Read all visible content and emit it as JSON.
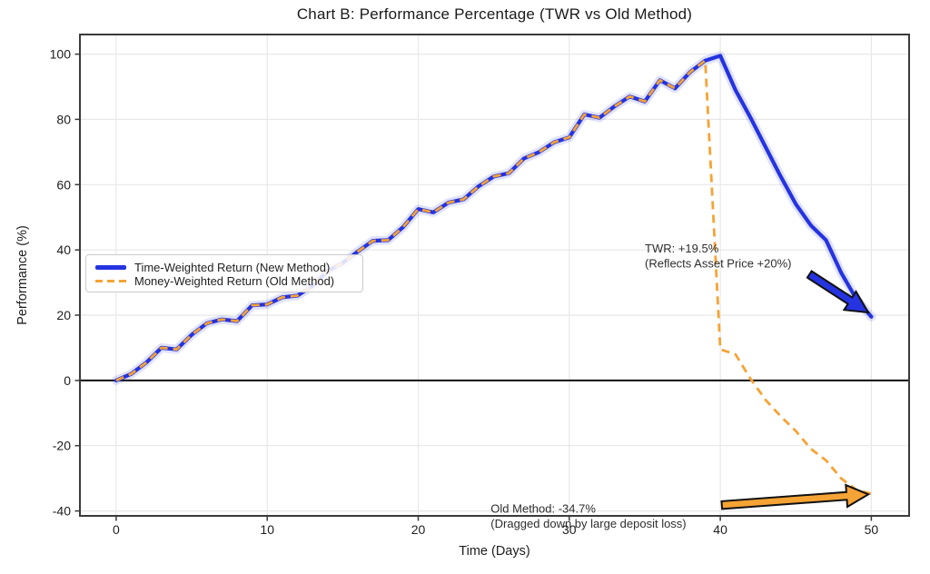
{
  "title": "Chart B: Performance Percentage (TWR vs Old Method)",
  "colors": {
    "twr": "#2533e0",
    "mwr": "#f6a335",
    "grid": "#e8e8e8",
    "spine": "#3a3a3a",
    "zero_line": "#111111",
    "tick_text": "#1d1d1d",
    "annotation_text": "#2e2e2e"
  },
  "legend": {
    "items": [
      {
        "label": "Time-Weighted Return (New Method)",
        "line_style": "solid"
      },
      {
        "label": "Money-Weighted Return (Old Method)",
        "line_style": "dashed"
      }
    ]
  },
  "chart_data": {
    "type": "line",
    "title": "Chart B: Performance Percentage (TWR vs Old Method)",
    "xlabel": "Time (Days)",
    "ylabel": "Performance (%)",
    "xlim": [
      -2.4,
      52.5
    ],
    "ylim": [
      -41.5,
      106
    ],
    "x_ticks": [
      0,
      10,
      20,
      30,
      40,
      50
    ],
    "y_ticks": [
      -40,
      -20,
      0,
      20,
      40,
      60,
      80,
      100
    ],
    "grid": true,
    "zero_line": true,
    "legend_position": "center-left",
    "series": [
      {
        "name": "Time-Weighted Return (New Method)",
        "style": "solid",
        "color": "#2533e0",
        "x": [
          0,
          1,
          2,
          3,
          4,
          5,
          6,
          7,
          8,
          9,
          10,
          11,
          12,
          13,
          14,
          15,
          16,
          17,
          18,
          19,
          20,
          21,
          22,
          23,
          24,
          25,
          26,
          27,
          28,
          29,
          30,
          31,
          32,
          33,
          34,
          35,
          36,
          37,
          38,
          39,
          40,
          41,
          42,
          43,
          44,
          45,
          46,
          47,
          48,
          49,
          50
        ],
        "y": [
          0,
          2,
          5.5,
          10,
          9.5,
          14,
          17.5,
          18.7,
          18.2,
          23,
          23.3,
          25.5,
          26,
          29,
          33.5,
          36,
          39.5,
          42.8,
          43,
          47,
          52.5,
          51.5,
          54.5,
          55.5,
          59.5,
          62.5,
          63.5,
          68,
          70,
          73,
          74.5,
          81.5,
          80.5,
          84,
          87,
          85.5,
          92,
          89.5,
          94.5,
          98,
          99.5,
          89,
          80.5,
          71.5,
          62.5,
          54,
          47.5,
          43,
          33,
          25,
          19.5
        ]
      },
      {
        "name": "Money-Weighted Return (Old Method)",
        "style": "dashed",
        "color": "#f6a335",
        "x": [
          0,
          1,
          2,
          3,
          4,
          5,
          6,
          7,
          8,
          9,
          10,
          11,
          12,
          13,
          14,
          15,
          16,
          17,
          18,
          19,
          20,
          21,
          22,
          23,
          24,
          25,
          26,
          27,
          28,
          29,
          30,
          31,
          32,
          33,
          34,
          35,
          36,
          37,
          38,
          39,
          40,
          41,
          42,
          43,
          44,
          45,
          46,
          47,
          48,
          49,
          50
        ],
        "y": [
          0,
          2,
          5.5,
          10,
          9.5,
          14,
          17.5,
          18.7,
          18.2,
          23,
          23.3,
          25.5,
          26,
          29,
          33.5,
          36,
          39.5,
          42.8,
          43,
          47,
          52.5,
          51.5,
          54.5,
          55.5,
          59.5,
          62.5,
          63.5,
          68,
          70,
          73,
          74.5,
          81.5,
          80.5,
          84,
          87,
          85.5,
          92,
          89.5,
          94.5,
          98,
          9.5,
          8,
          0.5,
          -6,
          -11,
          -15.5,
          -21,
          -24.5,
          -30,
          -33.5,
          -34.7
        ]
      }
    ],
    "annotations": [
      {
        "id": "twr",
        "lines": [
          "TWR: +19.5%",
          "(Reflects Asset Price +20%)"
        ],
        "text_x": 35.0,
        "text_y": 42.6,
        "arrow_from": [
          45.9,
          32.5
        ],
        "arrow_to": [
          49.8,
          20.8
        ],
        "arrow_color": "#2533e0"
      },
      {
        "id": "old-method",
        "lines": [
          "Old Method: -34.7%",
          "(Dragged down by large deposit loss)"
        ],
        "text_x": 24.8,
        "text_y": -37.2,
        "arrow_from": [
          40.1,
          -38.2
        ],
        "arrow_to": [
          49.8,
          -34.9
        ],
        "arrow_color": "#f6a335"
      }
    ]
  }
}
